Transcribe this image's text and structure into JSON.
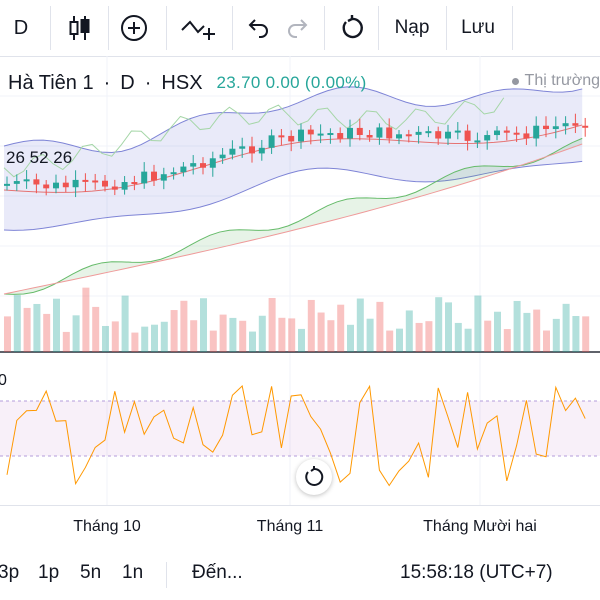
{
  "toolbar": {
    "interval": "D",
    "load_label": "Nạp",
    "save_label": "Lưu"
  },
  "legend": {
    "symbol": "Hà Tiên 1",
    "interval": "D",
    "exchange": "HSX",
    "price": "23.70 0.00 (0.00%)",
    "market_status": "Thị trường"
  },
  "indicator": {
    "values": "26 52 26"
  },
  "oscillator": {
    "label": "0"
  },
  "xaxis": {
    "labels": [
      "Tháng 10",
      "Tháng 11",
      "Tháng Mười hai"
    ]
  },
  "bottom": {
    "ranges": [
      "3p",
      "1p",
      "5n",
      "1n"
    ],
    "goto_label": "Đến...",
    "clock": "15:58:18 (UTC+7)"
  },
  "colors": {
    "up": "#26a69a",
    "down": "#ef5350",
    "accent": "#26a69a"
  }
}
